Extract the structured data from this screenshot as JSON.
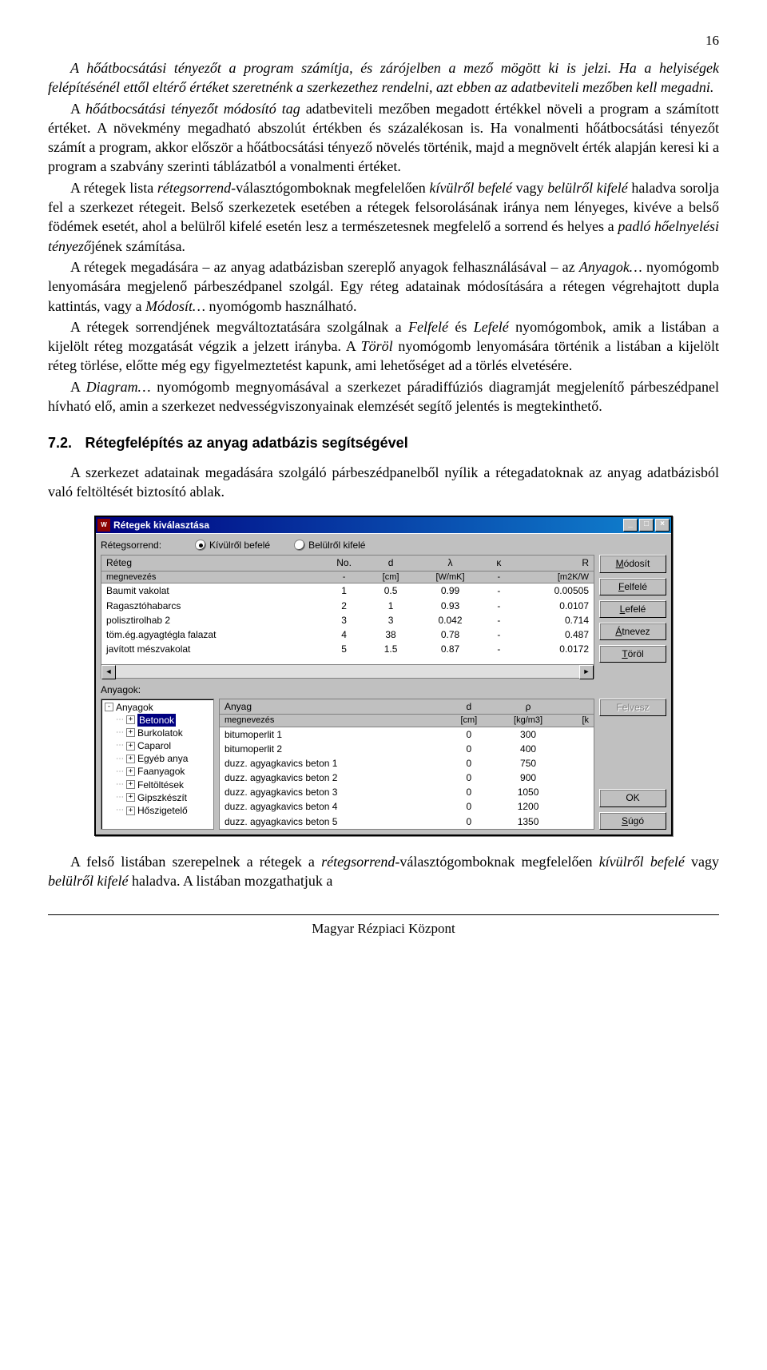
{
  "page_number": "16",
  "paragraphs": {
    "p1": "A hőátbocsátási tényezőt a program számítja, és zárójelben a mező mögött ki is jelzi. Ha a helyiségek felépítésénél ettől eltérő értéket szeretnénk a szerkezethez rendelni, azt ebben az adatbeviteli mezőben kell megadni.",
    "p2a": "A ",
    "p2b": "hőátbocsátási tényezőt módosító tag",
    "p2c": " adatbeviteli mezőben megadott értékkel növeli a program a számított értéket. A növekmény megadható abszolút értékben és százalékosan is. Ha vonalmenti hőátbocsátási tényezőt számít a program, akkor először a hőátbocsátási tényező növelés történik, majd a megnövelt érték alapján keresi ki a program a szabvány szerinti táblázatból a vonalmenti értéket.",
    "p3a": "A rétegek lista ",
    "p3b": "rétegsorrend",
    "p3c": "-választógomboknak megfelelően ",
    "p3d": "kívülről befelé",
    "p3e": " vagy ",
    "p3f": "belülről kifelé",
    "p3g": " haladva sorolja fel a szerkezet rétegeit. Belső szerkezetek esetében a rétegek felsorolásának iránya nem lényeges, kivéve a belső födémek esetét, ahol a belülről kifelé esetén lesz a természetesnek megfelelő a sorrend és helyes a ",
    "p3h": "padló hőelnyelési tényező",
    "p3i": "jének számítása.",
    "p4a": "A rétegek megadására – az anyag adatbázisban szereplő anyagok felhasználásával – az ",
    "p4b": "Anyagok…",
    "p4c": " nyomógomb lenyomására megjelenő párbeszédpanel szolgál. Egy réteg adatainak módosítására a rétegen végrehajtott dupla kattintás, vagy a ",
    "p4d": "Módosít…",
    "p4e": " nyomógomb használható.",
    "p5a": "A rétegek sorrendjének megváltoztatására szolgálnak a ",
    "p5b": "Felfelé",
    "p5c": " és ",
    "p5d": "Lefelé",
    "p5e": " nyomógombok, amik a listában a kijelölt réteg mozgatását végzik a jelzett irányba. A ",
    "p5f": "Töröl",
    "p5g": " nyomógomb lenyomására történik a listában a kijelölt réteg törlése, előtte még egy figyelmeztetést kapunk, ami lehetőséget ad a törlés elvetésére.",
    "p6a": "A ",
    "p6b": "Diagram…",
    "p6c": " nyomógomb megnyomásával a szerkezet páradiffúziós diagramját megjelenítő párbeszédpanel hívható elő, amin a szerkezet nedvességviszonyainak elemzését segítő jelentés is megtekinthető."
  },
  "section": {
    "num": "7.2.",
    "title": "Rétegfelépítés az anyag adatbázis segítségével"
  },
  "after_para": "A szerkezet adatainak megadására szolgáló párbeszédpanelből nyílik a rétegadatoknak az anyag adatbázisból való feltöltését biztosító ablak.",
  "dialog": {
    "title": "Rétegek kiválasztása",
    "order_label": "Rétegsorrend:",
    "radio_out_in": "Kívülről befelé",
    "radio_in_out": "Belülről kifelé",
    "top_headers": {
      "name1": "Réteg",
      "name2": "megnevezés",
      "no": "No.",
      "no_unit": "-",
      "d": "d",
      "d_unit": "[cm]",
      "lambda": "λ",
      "lambda_unit": "[W/mK]",
      "kappa": "κ",
      "kappa_unit": "-",
      "R": "R",
      "R_unit": "[m2K/W"
    },
    "top_rows": [
      {
        "name": "Baumit vakolat",
        "no": "1",
        "d": "0.5",
        "l": "0.99",
        "k": "-",
        "r": "0.00505"
      },
      {
        "name": "Ragasztóhabarcs",
        "no": "2",
        "d": "1",
        "l": "0.93",
        "k": "-",
        "r": "0.0107"
      },
      {
        "name": "polisztirolhab 2",
        "no": "3",
        "d": "3",
        "l": "0.042",
        "k": "-",
        "r": "0.714"
      },
      {
        "name": "töm.ég.agyagtégla falazat",
        "no": "4",
        "d": "38",
        "l": "0.78",
        "k": "-",
        "r": "0.487"
      },
      {
        "name": "javított mészvakolat",
        "no": "5",
        "d": "1.5",
        "l": "0.87",
        "k": "-",
        "r": "0.0172"
      }
    ],
    "btns": {
      "modosit": "Módosít",
      "felfele": "Felfelé",
      "lefele": "Lefelé",
      "atnevez": "Átnevez",
      "torol": "Töröl",
      "felvesz": "Felvesz",
      "ok": "OK",
      "sugo": "Súgó"
    },
    "anyagok_label": "Anyagok:",
    "tree": [
      "Anyagok",
      "Betonok",
      "Burkolatok",
      "Caparol",
      "Egyéb anya",
      "Faanyagok",
      "Feltöltések",
      "Gipszkészít",
      "Hőszigetelő"
    ],
    "tree_selected": 1,
    "low_headers": {
      "name1": "Anyag",
      "name2": "megnevezés",
      "d": "d",
      "d_unit": "[cm]",
      "rho": "ρ",
      "rho_unit": "[kg/m3]",
      "extra": "[k"
    },
    "low_rows": [
      {
        "name": "bitumoperlit 1",
        "d": "0",
        "rho": "300"
      },
      {
        "name": "bitumoperlit 2",
        "d": "0",
        "rho": "400"
      },
      {
        "name": "duzz. agyagkavics beton 1",
        "d": "0",
        "rho": "750"
      },
      {
        "name": "duzz. agyagkavics beton 2",
        "d": "0",
        "rho": "900"
      },
      {
        "name": "duzz. agyagkavics beton 3",
        "d": "0",
        "rho": "1050"
      },
      {
        "name": "duzz. agyagkavics beton 4",
        "d": "0",
        "rho": "1200"
      },
      {
        "name": "duzz. agyagkavics beton 5",
        "d": "0",
        "rho": "1350"
      }
    ]
  },
  "footer_para": {
    "a": "A felső listában szerepelnek a rétegek a ",
    "b": "rétegsorrend",
    "c": "-választógomboknak megfelelően ",
    "d": "kívülről befelé",
    "e": " vagy ",
    "f": "belülről kifelé",
    "g": " haladva. A listában mozgathatjuk a"
  },
  "footer_center": "Magyar Rézpiaci Központ"
}
